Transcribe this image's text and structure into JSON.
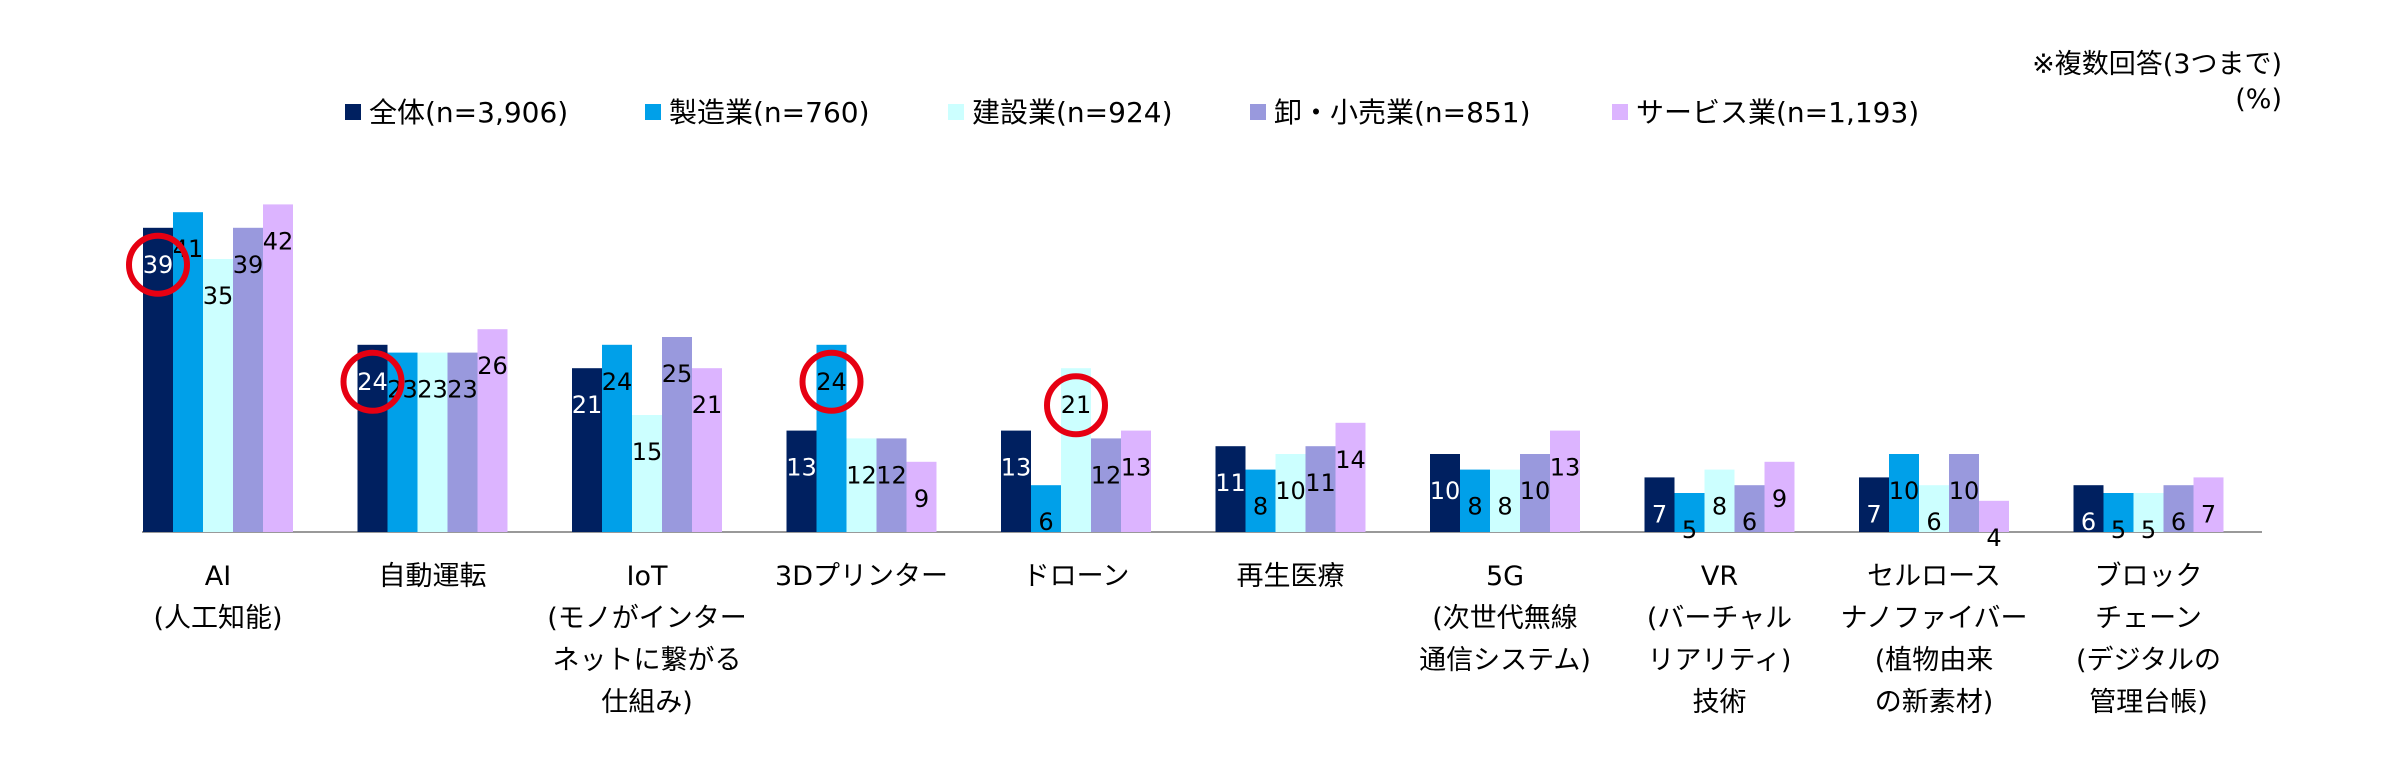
{
  "notes": {
    "multiple_answers": "※複数回答(3つまで)",
    "unit": "(%)"
  },
  "chart_data": {
    "type": "bar",
    "categories": [
      "AI\n(人工知能)",
      "自動運転",
      "IoT\n(モノがインター\nネットに繋がる\n仕組み)",
      "3Dプリンター",
      "ドローン",
      "再生医療",
      "5G\n(次世代無線\n通信システム)",
      "VR\n(バーチャル\nリアリティ)\n技術",
      "セルロース\nナノファイバー\n(植物由来\nの新素材)",
      "ブロック\nチェーン\n(デジタルの\n管理台帳)"
    ],
    "series": [
      {
        "name": "全体(n=3,906)",
        "color": "#002060",
        "values": [
          39,
          24,
          21,
          13,
          13,
          11,
          10,
          7,
          7,
          6
        ]
      },
      {
        "name": "製造業(n=760)",
        "color": "#00a0e9",
        "values": [
          41,
          23,
          24,
          24,
          6,
          8,
          8,
          5,
          10,
          5
        ]
      },
      {
        "name": "建設業(n=924)",
        "color": "#ccffff",
        "values": [
          35,
          23,
          15,
          12,
          21,
          10,
          8,
          8,
          6,
          5
        ]
      },
      {
        "name": "卸・小売業(n=851)",
        "color": "#9999dd",
        "values": [
          39,
          23,
          25,
          12,
          12,
          11,
          10,
          6,
          10,
          6
        ]
      },
      {
        "name": "サービス業(n=1,193)",
        "color": "#dcb4ff",
        "values": [
          42,
          26,
          21,
          9,
          13,
          14,
          13,
          9,
          4,
          7
        ]
      }
    ],
    "highlighted": [
      {
        "category_index": 0,
        "series_index": 0
      },
      {
        "category_index": 1,
        "series_index": 0
      },
      {
        "category_index": 3,
        "series_index": 1
      },
      {
        "category_index": 4,
        "series_index": 2
      }
    ],
    "highlight_color": "#e60012",
    "ylim": [
      0,
      45
    ],
    "legend_position": "top",
    "grid": false
  }
}
